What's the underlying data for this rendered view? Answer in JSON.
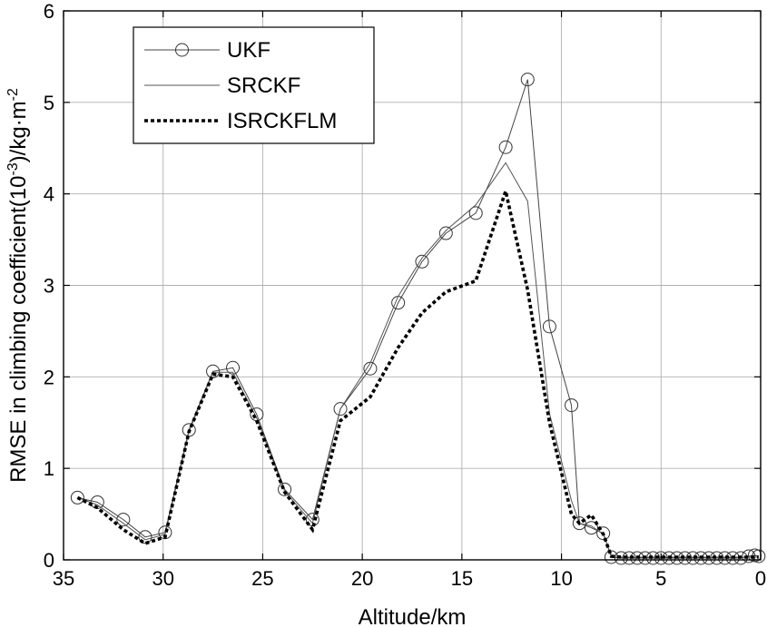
{
  "chart_data": {
    "type": "line",
    "xlabel": "Altitude/km",
    "ylabel": "RMSE in climbing coefficient(10",
    "ylabel_sup": "-3",
    "ylabel_tail": ")/kg·m",
    "ylabel_sup2": "-2",
    "xlim": [
      35,
      0
    ],
    "ylim": [
      0,
      6
    ],
    "x_reversed": true,
    "grid": true,
    "legend_position": "top-left",
    "x_ticks": [
      35,
      30,
      25,
      20,
      15,
      10,
      5,
      0
    ],
    "x_tick_labels": [
      "35",
      "30",
      "25",
      "20",
      "15",
      "10",
      "5",
      "0"
    ],
    "y_ticks": [
      0,
      1,
      2,
      3,
      4,
      5,
      6
    ],
    "y_tick_labels": [
      "0",
      "1",
      "2",
      "3",
      "4",
      "5",
      "6"
    ],
    "series": [
      {
        "name": "UKF",
        "style": "solid-thin-circle",
        "color": "#444444",
        "x": [
          34.3,
          33.3,
          32.0,
          30.9,
          29.9,
          28.7,
          27.5,
          26.5,
          25.3,
          23.9,
          22.5,
          21.1,
          19.6,
          18.2,
          17.0,
          15.8,
          14.3,
          12.8,
          11.7,
          10.6,
          9.5,
          9.1,
          8.5,
          7.9,
          7.5,
          7.0,
          6.6,
          6.2,
          5.8,
          5.4,
          5.0,
          4.6,
          4.2,
          3.8,
          3.4,
          3.0,
          2.6,
          2.2,
          1.8,
          1.4,
          1.0,
          0.6,
          0.3,
          0.1
        ],
        "y": [
          0.68,
          0.63,
          0.44,
          0.25,
          0.3,
          1.42,
          2.06,
          2.1,
          1.59,
          0.77,
          0.44,
          1.65,
          2.09,
          2.81,
          3.26,
          3.57,
          3.79,
          4.51,
          5.25,
          2.55,
          1.69,
          0.4,
          0.35,
          0.29,
          0.03,
          0.02,
          0.02,
          0.02,
          0.02,
          0.02,
          0.02,
          0.02,
          0.02,
          0.02,
          0.02,
          0.02,
          0.02,
          0.02,
          0.02,
          0.02,
          0.02,
          0.04,
          0.05,
          0.04
        ]
      },
      {
        "name": "SRCKF",
        "style": "solid-thin",
        "color": "#555555",
        "x": [
          34.3,
          33.3,
          32.0,
          30.9,
          29.9,
          28.7,
          27.5,
          26.5,
          25.3,
          23.9,
          22.5,
          21.1,
          19.6,
          18.2,
          17.0,
          15.8,
          14.3,
          12.8,
          11.7,
          10.6,
          9.5,
          9.1,
          8.5,
          7.9,
          7.5,
          7.0,
          5.0,
          3.0,
          1.0,
          0.1
        ],
        "y": [
          0.68,
          0.6,
          0.4,
          0.22,
          0.28,
          1.4,
          2.05,
          2.05,
          1.55,
          0.75,
          0.4,
          1.65,
          2.15,
          2.88,
          3.3,
          3.6,
          3.88,
          4.34,
          3.92,
          1.6,
          0.65,
          0.4,
          0.37,
          0.28,
          0.05,
          0.03,
          0.03,
          0.03,
          0.03,
          0.03
        ]
      },
      {
        "name": "ISRCKFLM",
        "style": "dotted-thick",
        "color": "#000000",
        "x": [
          34.3,
          33.3,
          32.0,
          30.9,
          29.9,
          28.7,
          27.5,
          26.5,
          25.3,
          23.9,
          22.5,
          21.1,
          19.6,
          18.2,
          17.0,
          15.8,
          14.3,
          12.8,
          11.7,
          10.6,
          9.5,
          9.1,
          8.5,
          7.9,
          7.5,
          7.0,
          5.0,
          3.0,
          1.0,
          0.1
        ],
        "y": [
          0.68,
          0.57,
          0.33,
          0.18,
          0.25,
          1.4,
          2.03,
          2.0,
          1.52,
          0.74,
          0.33,
          1.52,
          1.78,
          2.32,
          2.7,
          2.93,
          3.05,
          4.03,
          2.95,
          1.5,
          0.5,
          0.4,
          0.49,
          0.28,
          0.04,
          0.03,
          0.03,
          0.03,
          0.03,
          0.03
        ]
      }
    ]
  }
}
